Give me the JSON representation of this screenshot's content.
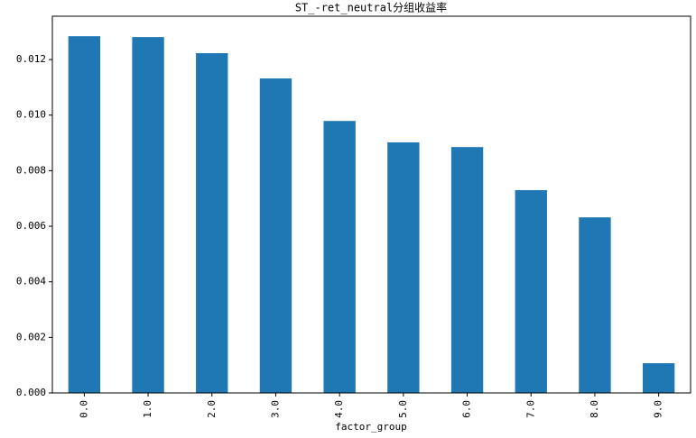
{
  "chart_data": {
    "type": "bar",
    "title": "ST_-ret_neutral分组收益率",
    "x_label": "factor_group",
    "categories": [
      "0.0",
      "1.0",
      "2.0",
      "3.0",
      "4.0",
      "5.0",
      "6.0",
      "7.0",
      "8.0",
      "9.0"
    ],
    "values": [
      0.01284,
      0.01281,
      0.01223,
      0.01132,
      0.00979,
      0.00902,
      0.00885,
      0.0073,
      0.00632,
      0.00107
    ],
    "color": "#1f77b4",
    "ylim": [
      0,
      0.01356
    ],
    "yticks": [
      {
        "value": 0,
        "label": "0.000"
      },
      {
        "value": 0.002,
        "label": "0.002"
      },
      {
        "value": 0.004,
        "label": "0.004"
      },
      {
        "value": 0.006,
        "label": "0.006"
      },
      {
        "value": 0.008,
        "label": "0.008"
      },
      {
        "value": 0.01,
        "label": "0.010"
      },
      {
        "value": 0.012,
        "label": "0.012"
      }
    ]
  }
}
